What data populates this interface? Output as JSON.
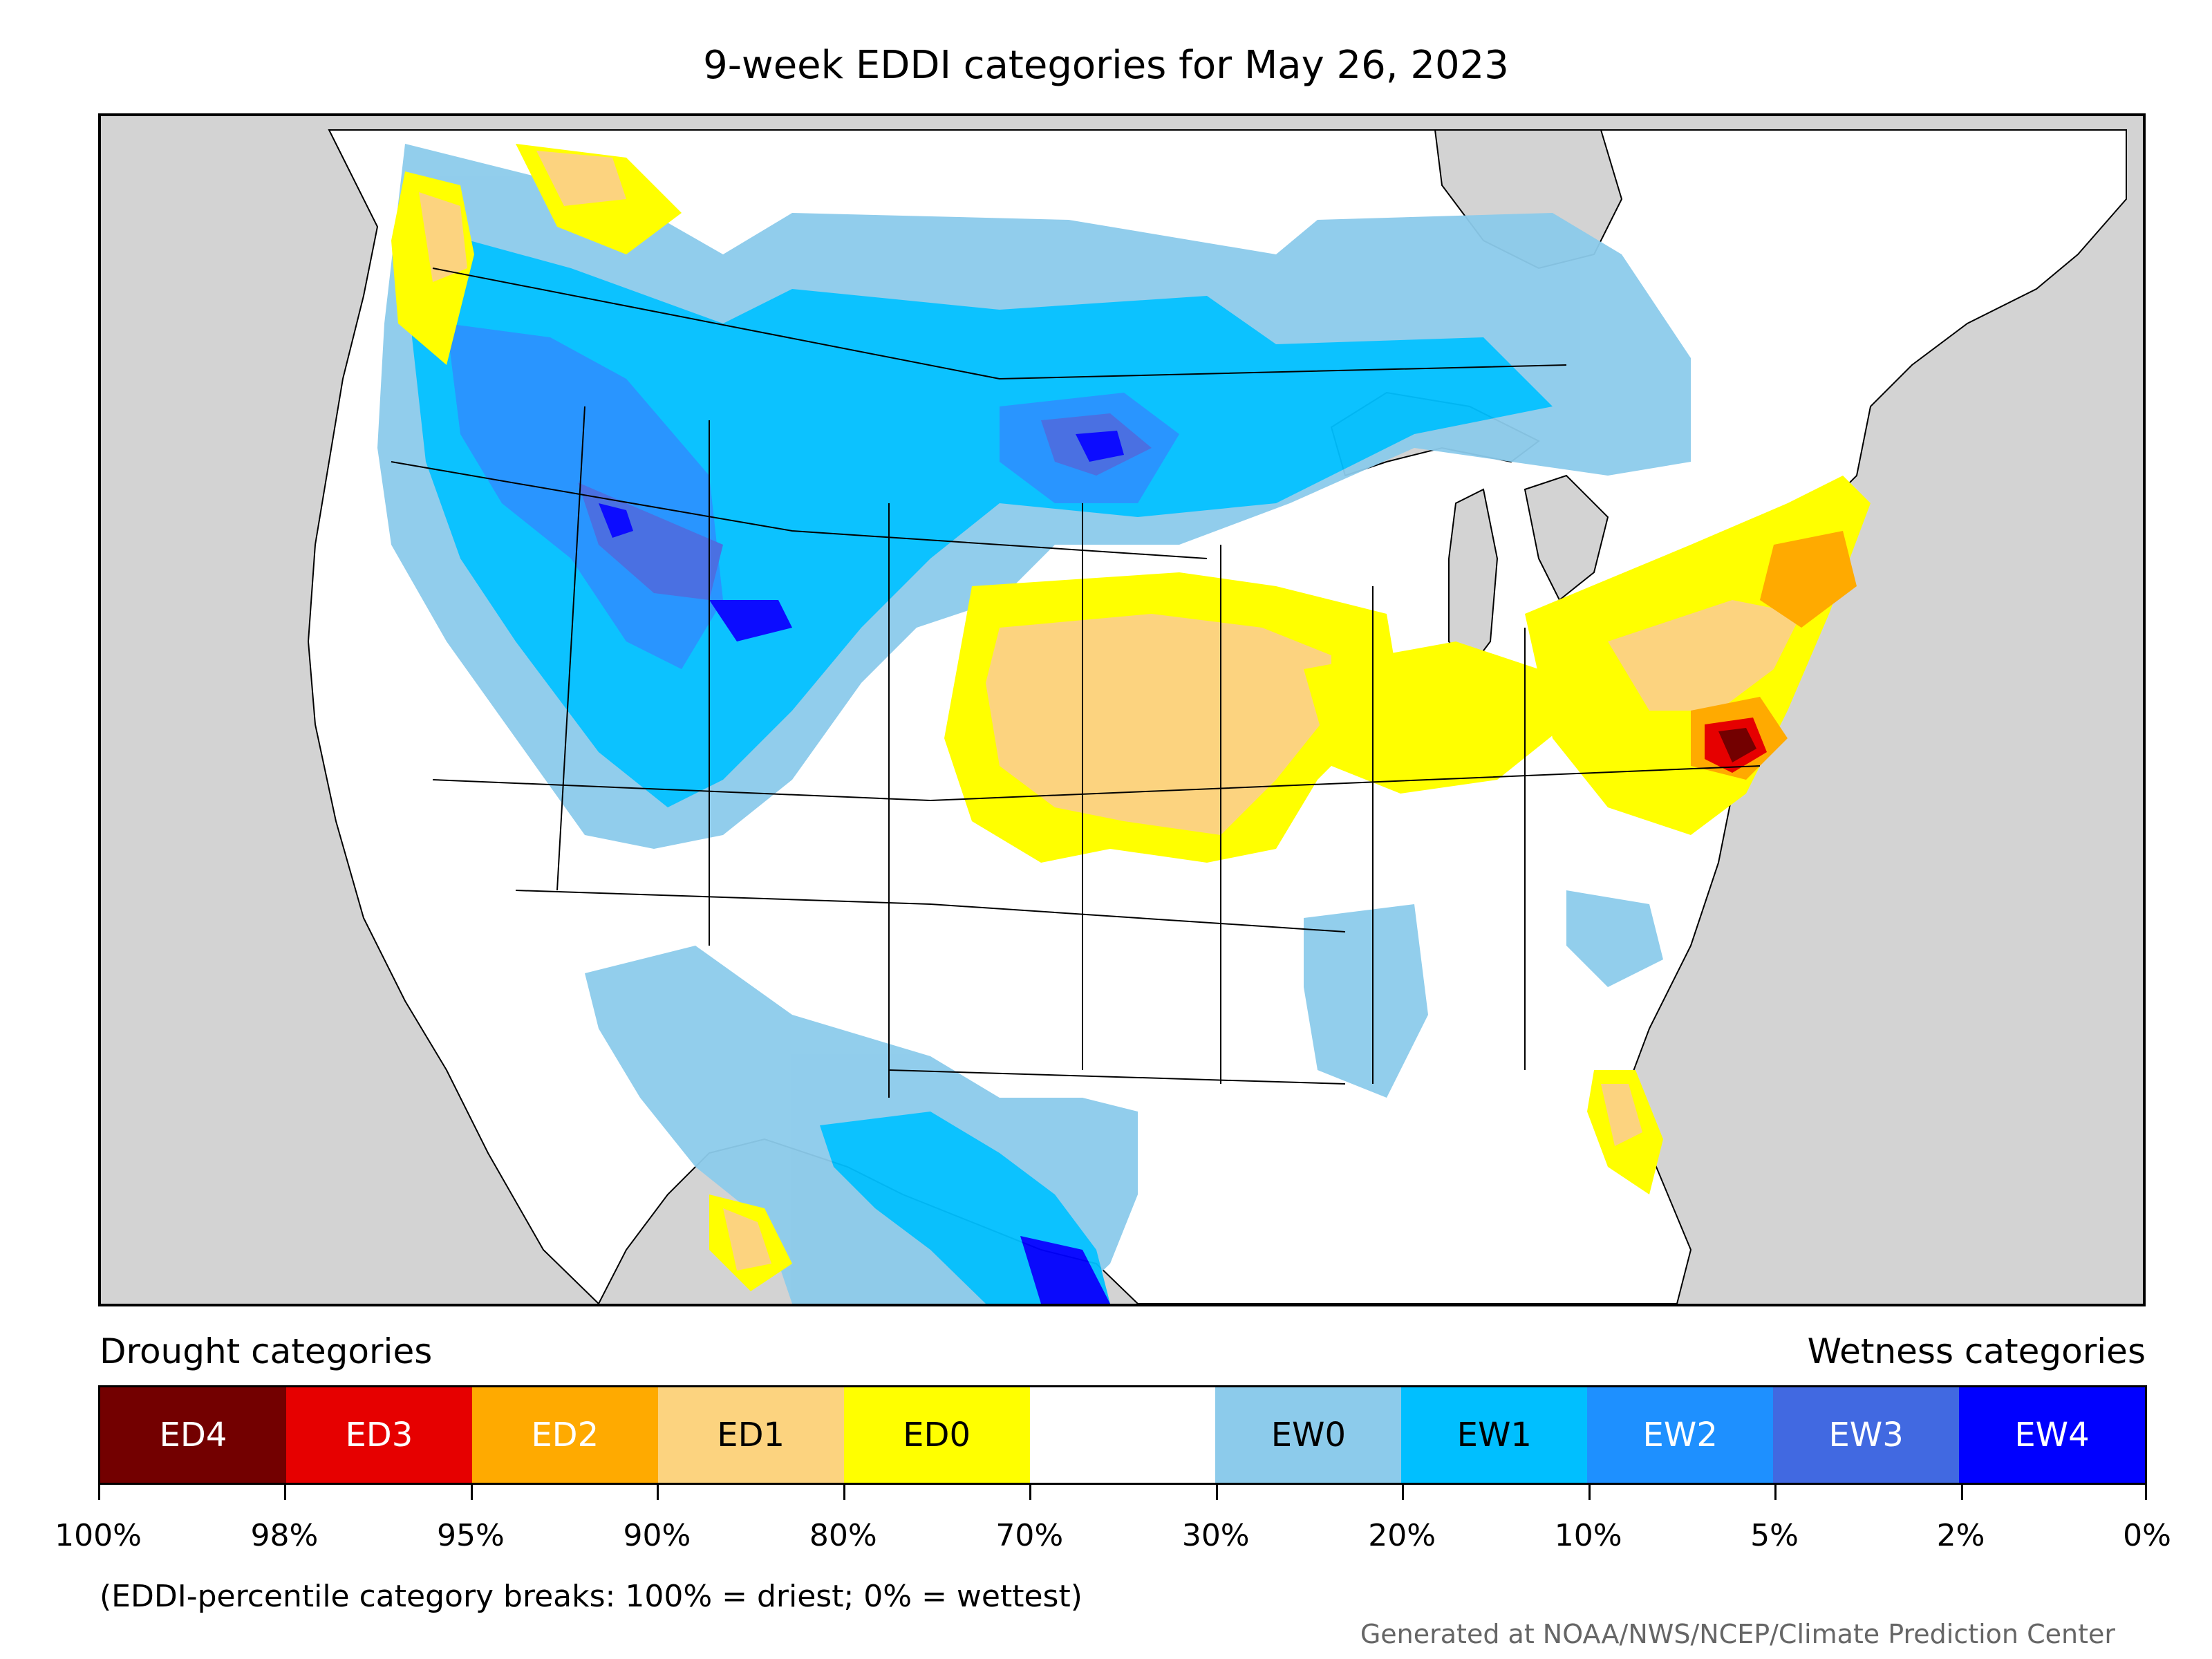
{
  "title": "9-week EDDI categories for May 26, 2023",
  "legend": {
    "drought_heading": "Drought categories",
    "wetness_heading": "Wetness categories",
    "categories": [
      {
        "label": "ED4",
        "color": "#730000",
        "text_color": "#ffffff"
      },
      {
        "label": "ED3",
        "color": "#e60000",
        "text_color": "#ffffff"
      },
      {
        "label": "ED2",
        "color": "#ffaa00",
        "text_color": "#ffffff"
      },
      {
        "label": "ED1",
        "color": "#fcd37f",
        "text_color": "#000000"
      },
      {
        "label": "ED0",
        "color": "#ffff00",
        "text_color": "#000000"
      },
      {
        "label": "",
        "color": "#ffffff",
        "text_color": "#000000"
      },
      {
        "label": "EW0",
        "color": "#8ccbeb",
        "text_color": "#000000"
      },
      {
        "label": "EW1",
        "color": "#00bfff",
        "text_color": "#000000"
      },
      {
        "label": "EW2",
        "color": "#1e90ff",
        "text_color": "#ffffff"
      },
      {
        "label": "EW3",
        "color": "#4169e1",
        "text_color": "#ffffff"
      },
      {
        "label": "EW4",
        "color": "#0000ff",
        "text_color": "#ffffff"
      }
    ],
    "tick_labels": [
      "100%",
      "98%",
      "95%",
      "90%",
      "80%",
      "70%",
      "30%",
      "20%",
      "10%",
      "5%",
      "2%",
      "0%"
    ]
  },
  "footnote": "(EDDI-percentile category breaks: 100% = driest; 0% = wettest)",
  "credit": "Generated at NOAA/NWS/NCEP/Climate Prediction Center",
  "colors": {
    "ocean": "#d3d3d3",
    "land": "#ffffff",
    "border": "#000000"
  }
}
